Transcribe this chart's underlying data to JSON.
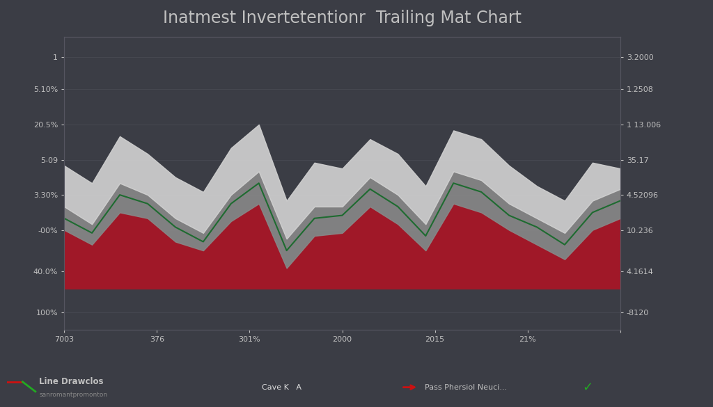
{
  "title": "Inatmest Invertetentionr  Trailing Mat Chart",
  "title_fontsize": 17,
  "background_color": "#3b3d45",
  "plot_bg_color": "#3b3d45",
  "x_tick_labels": [
    "7003",
    "376",
    "301%",
    "2000",
    "2015",
    "21%",
    ""
  ],
  "left_yticks_labels": [
    "1",
    "5.10%",
    "20.5%",
    "5-09",
    "3.30%",
    "-00%",
    "40.0%",
    "100%"
  ],
  "left_yticks_pos": [
    0.93,
    0.82,
    0.7,
    0.58,
    0.46,
    0.34,
    0.2,
    0.06
  ],
  "right_yticks_labels": [
    "3.2000",
    "1.2508",
    "1 13.006",
    "35.17",
    "4.52096",
    "10.236",
    "4.1614",
    "-8120"
  ],
  "right_yticks_pos": [
    0.93,
    0.82,
    0.7,
    0.58,
    0.46,
    0.34,
    0.2,
    0.06
  ],
  "series_white_top": [
    0.56,
    0.5,
    0.66,
    0.6,
    0.52,
    0.47,
    0.62,
    0.7,
    0.44,
    0.57,
    0.55,
    0.65,
    0.6,
    0.49,
    0.68,
    0.65,
    0.56,
    0.49,
    0.44,
    0.57,
    0.55
  ],
  "series_gray_top": [
    0.42,
    0.36,
    0.5,
    0.46,
    0.38,
    0.33,
    0.46,
    0.54,
    0.31,
    0.42,
    0.42,
    0.52,
    0.46,
    0.36,
    0.54,
    0.51,
    0.43,
    0.38,
    0.33,
    0.44,
    0.48
  ],
  "series_green_y": [
    0.38,
    0.33,
    0.46,
    0.43,
    0.35,
    0.3,
    0.43,
    0.5,
    0.27,
    0.38,
    0.39,
    0.48,
    0.42,
    0.32,
    0.5,
    0.47,
    0.39,
    0.35,
    0.29,
    0.4,
    0.44
  ],
  "series_red_top": [
    0.34,
    0.29,
    0.4,
    0.38,
    0.3,
    0.27,
    0.37,
    0.43,
    0.21,
    0.32,
    0.33,
    0.42,
    0.36,
    0.27,
    0.43,
    0.4,
    0.34,
    0.29,
    0.24,
    0.34,
    0.38
  ],
  "series_bottom": [
    0.14,
    0.14,
    0.14,
    0.14,
    0.14,
    0.14,
    0.14,
    0.14,
    0.14,
    0.14,
    0.14,
    0.14,
    0.14,
    0.14,
    0.14,
    0.14,
    0.14,
    0.14,
    0.14,
    0.14,
    0.14
  ],
  "color_white_area": "#d0d0d0",
  "color_gray_area": "#888888",
  "color_red_area": "#a01828",
  "color_green_line": "#1e6b30",
  "text_color": "#c0c0c0",
  "grid_color": "#555560",
  "legend_red_line_label": "Line Drawclos",
  "legend_sub_label": "sanromantpromonton",
  "legend_green_box_label": "Cave K   A",
  "legend_arrow_label": "Pass Phersiol Neuci...",
  "ylim": [
    0.0,
    1.0
  ]
}
